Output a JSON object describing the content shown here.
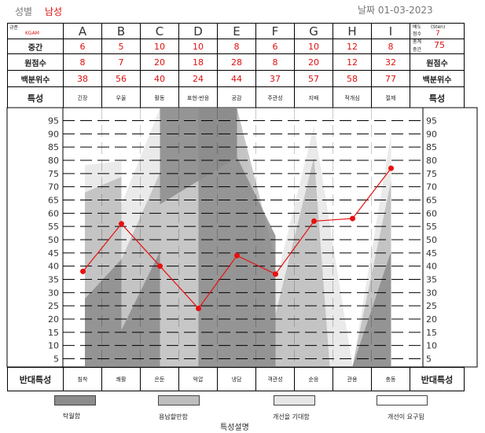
{
  "header": {
    "gender_label": "성별",
    "gender_value": "남성",
    "date": "날짜 01-03-2023"
  },
  "table": {
    "norm_label": "규준",
    "norm_value": "KGAM",
    "row_labels": {
      "sten": "중간",
      "raw": "원점수",
      "percentile": "백분위수",
      "trait": "특성"
    },
    "right_labels": {
      "raw": "원점수",
      "percentile": "백분위수",
      "trait": "특성"
    },
    "sten_corner": {
      "line1": "배도",
      "line2": "점수",
      "sten_word": "(Sten)",
      "sten_value": "7",
      "total_line1": "총계",
      "total_line2": "중간",
      "total_value": "75"
    },
    "scales": [
      {
        "code": "A",
        "sten": "6",
        "raw": "8",
        "percentile": "38",
        "trait": "긴장",
        "opposite": "침착"
      },
      {
        "code": "B",
        "sten": "5",
        "raw": "7",
        "percentile": "56",
        "trait": "우울",
        "opposite": "쾌활"
      },
      {
        "code": "C",
        "sten": "10",
        "raw": "20",
        "percentile": "40",
        "trait": "활동",
        "opposite": "은둔"
      },
      {
        "code": "D",
        "sten": "10",
        "raw": "18",
        "percentile": "24",
        "trait": "표현-반응",
        "opposite": "억압"
      },
      {
        "code": "E",
        "sten": "8",
        "raw": "28",
        "percentile": "44",
        "trait": "공감",
        "opposite": "냉담"
      },
      {
        "code": "F",
        "sten": "6",
        "raw": "8",
        "percentile": "37",
        "trait": "주관성",
        "opposite": "객관성"
      },
      {
        "code": "G",
        "sten": "10",
        "raw": "20",
        "percentile": "57",
        "trait": "지배",
        "opposite": "순응"
      },
      {
        "code": "H",
        "sten": "12",
        "raw": "12",
        "percentile": "58",
        "trait": "적개심",
        "opposite": "관용"
      },
      {
        "code": "I",
        "sten": "8",
        "raw": "32",
        "percentile": "77",
        "trait": "절제",
        "opposite": "충동"
      }
    ]
  },
  "bottom": {
    "left_label": "반대특성",
    "right_label": "반대특성"
  },
  "legend": {
    "title": "특성설명",
    "items": [
      {
        "label": "탁월함",
        "color": "#8c8c8c"
      },
      {
        "label": "용납할만함",
        "color": "#bdbdbd"
      },
      {
        "label": "개선을 기대함",
        "color": "#e6e6e6"
      },
      {
        "label": "개선이 요구됨",
        "color": "#ffffff"
      }
    ]
  },
  "chart_data": {
    "type": "line",
    "categories": [
      "A",
      "B",
      "C",
      "D",
      "E",
      "F",
      "G",
      "H",
      "I"
    ],
    "series": [
      {
        "values": [
          38,
          56,
          40,
          24,
          44,
          37,
          57,
          58,
          77
        ],
        "color": "#e81010"
      }
    ],
    "y_ticks": [
      5,
      10,
      15,
      20,
      25,
      30,
      35,
      40,
      45,
      50,
      55,
      60,
      65,
      70,
      75,
      80,
      85,
      90,
      95
    ],
    "ylim": [
      0,
      100
    ],
    "band_colors": {
      "excellent": "#8c8c8c",
      "acceptable": "#bdbdbd",
      "improve": "#e6e6e6",
      "needed": "#ffffff"
    },
    "grid": "dashed"
  }
}
